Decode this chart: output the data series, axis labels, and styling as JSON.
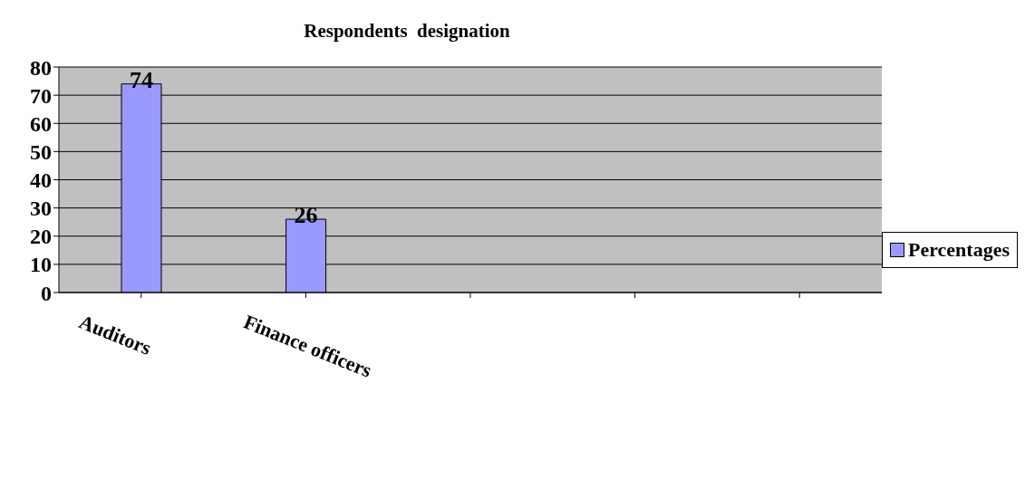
{
  "chart_data": {
    "type": "bar",
    "title": "Respondents  designation",
    "categories": [
      "Auditors",
      "Finance officers",
      null,
      null,
      null
    ],
    "series": [
      {
        "name": "Percentages",
        "color": "#9999ff",
        "values": [
          74,
          26,
          null,
          null,
          null
        ]
      }
    ],
    "ylim": [
      0,
      80
    ],
    "yticks": [
      0,
      10,
      20,
      30,
      40,
      50,
      60,
      70,
      80
    ],
    "grid": "y",
    "legend": "right",
    "data_labels": true
  }
}
